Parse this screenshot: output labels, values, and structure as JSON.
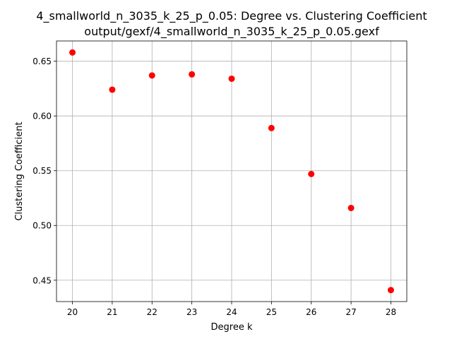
{
  "chart_data": {
    "type": "scatter",
    "title": "4_smallworld_n_3035_k_25_p_0.05: Degree vs. Clustering Coefficient",
    "subtitle": "output/gexf/4_smallworld_n_3035_k_25_p_0.05.gexf",
    "xlabel": "Degree k",
    "ylabel": "Clustering Coefficient",
    "xlim": [
      19.6,
      28.4
    ],
    "ylim": [
      0.4305,
      0.6685
    ],
    "xticks": [
      20,
      21,
      22,
      23,
      24,
      25,
      26,
      27,
      28
    ],
    "xtick_labels": [
      "20",
      "21",
      "22",
      "23",
      "24",
      "25",
      "26",
      "27",
      "28"
    ],
    "yticks": [
      0.45,
      0.5,
      0.55,
      0.6,
      0.65
    ],
    "ytick_labels": [
      "0.45",
      "0.50",
      "0.55",
      "0.60",
      "0.65"
    ],
    "grid": true,
    "marker_color": "#ff0000",
    "points": [
      {
        "x": 20,
        "y": 0.658
      },
      {
        "x": 21,
        "y": 0.624
      },
      {
        "x": 22,
        "y": 0.637
      },
      {
        "x": 23,
        "y": 0.638
      },
      {
        "x": 24,
        "y": 0.634
      },
      {
        "x": 25,
        "y": 0.589
      },
      {
        "x": 26,
        "y": 0.547
      },
      {
        "x": 27,
        "y": 0.516
      },
      {
        "x": 28,
        "y": 0.441
      }
    ]
  }
}
